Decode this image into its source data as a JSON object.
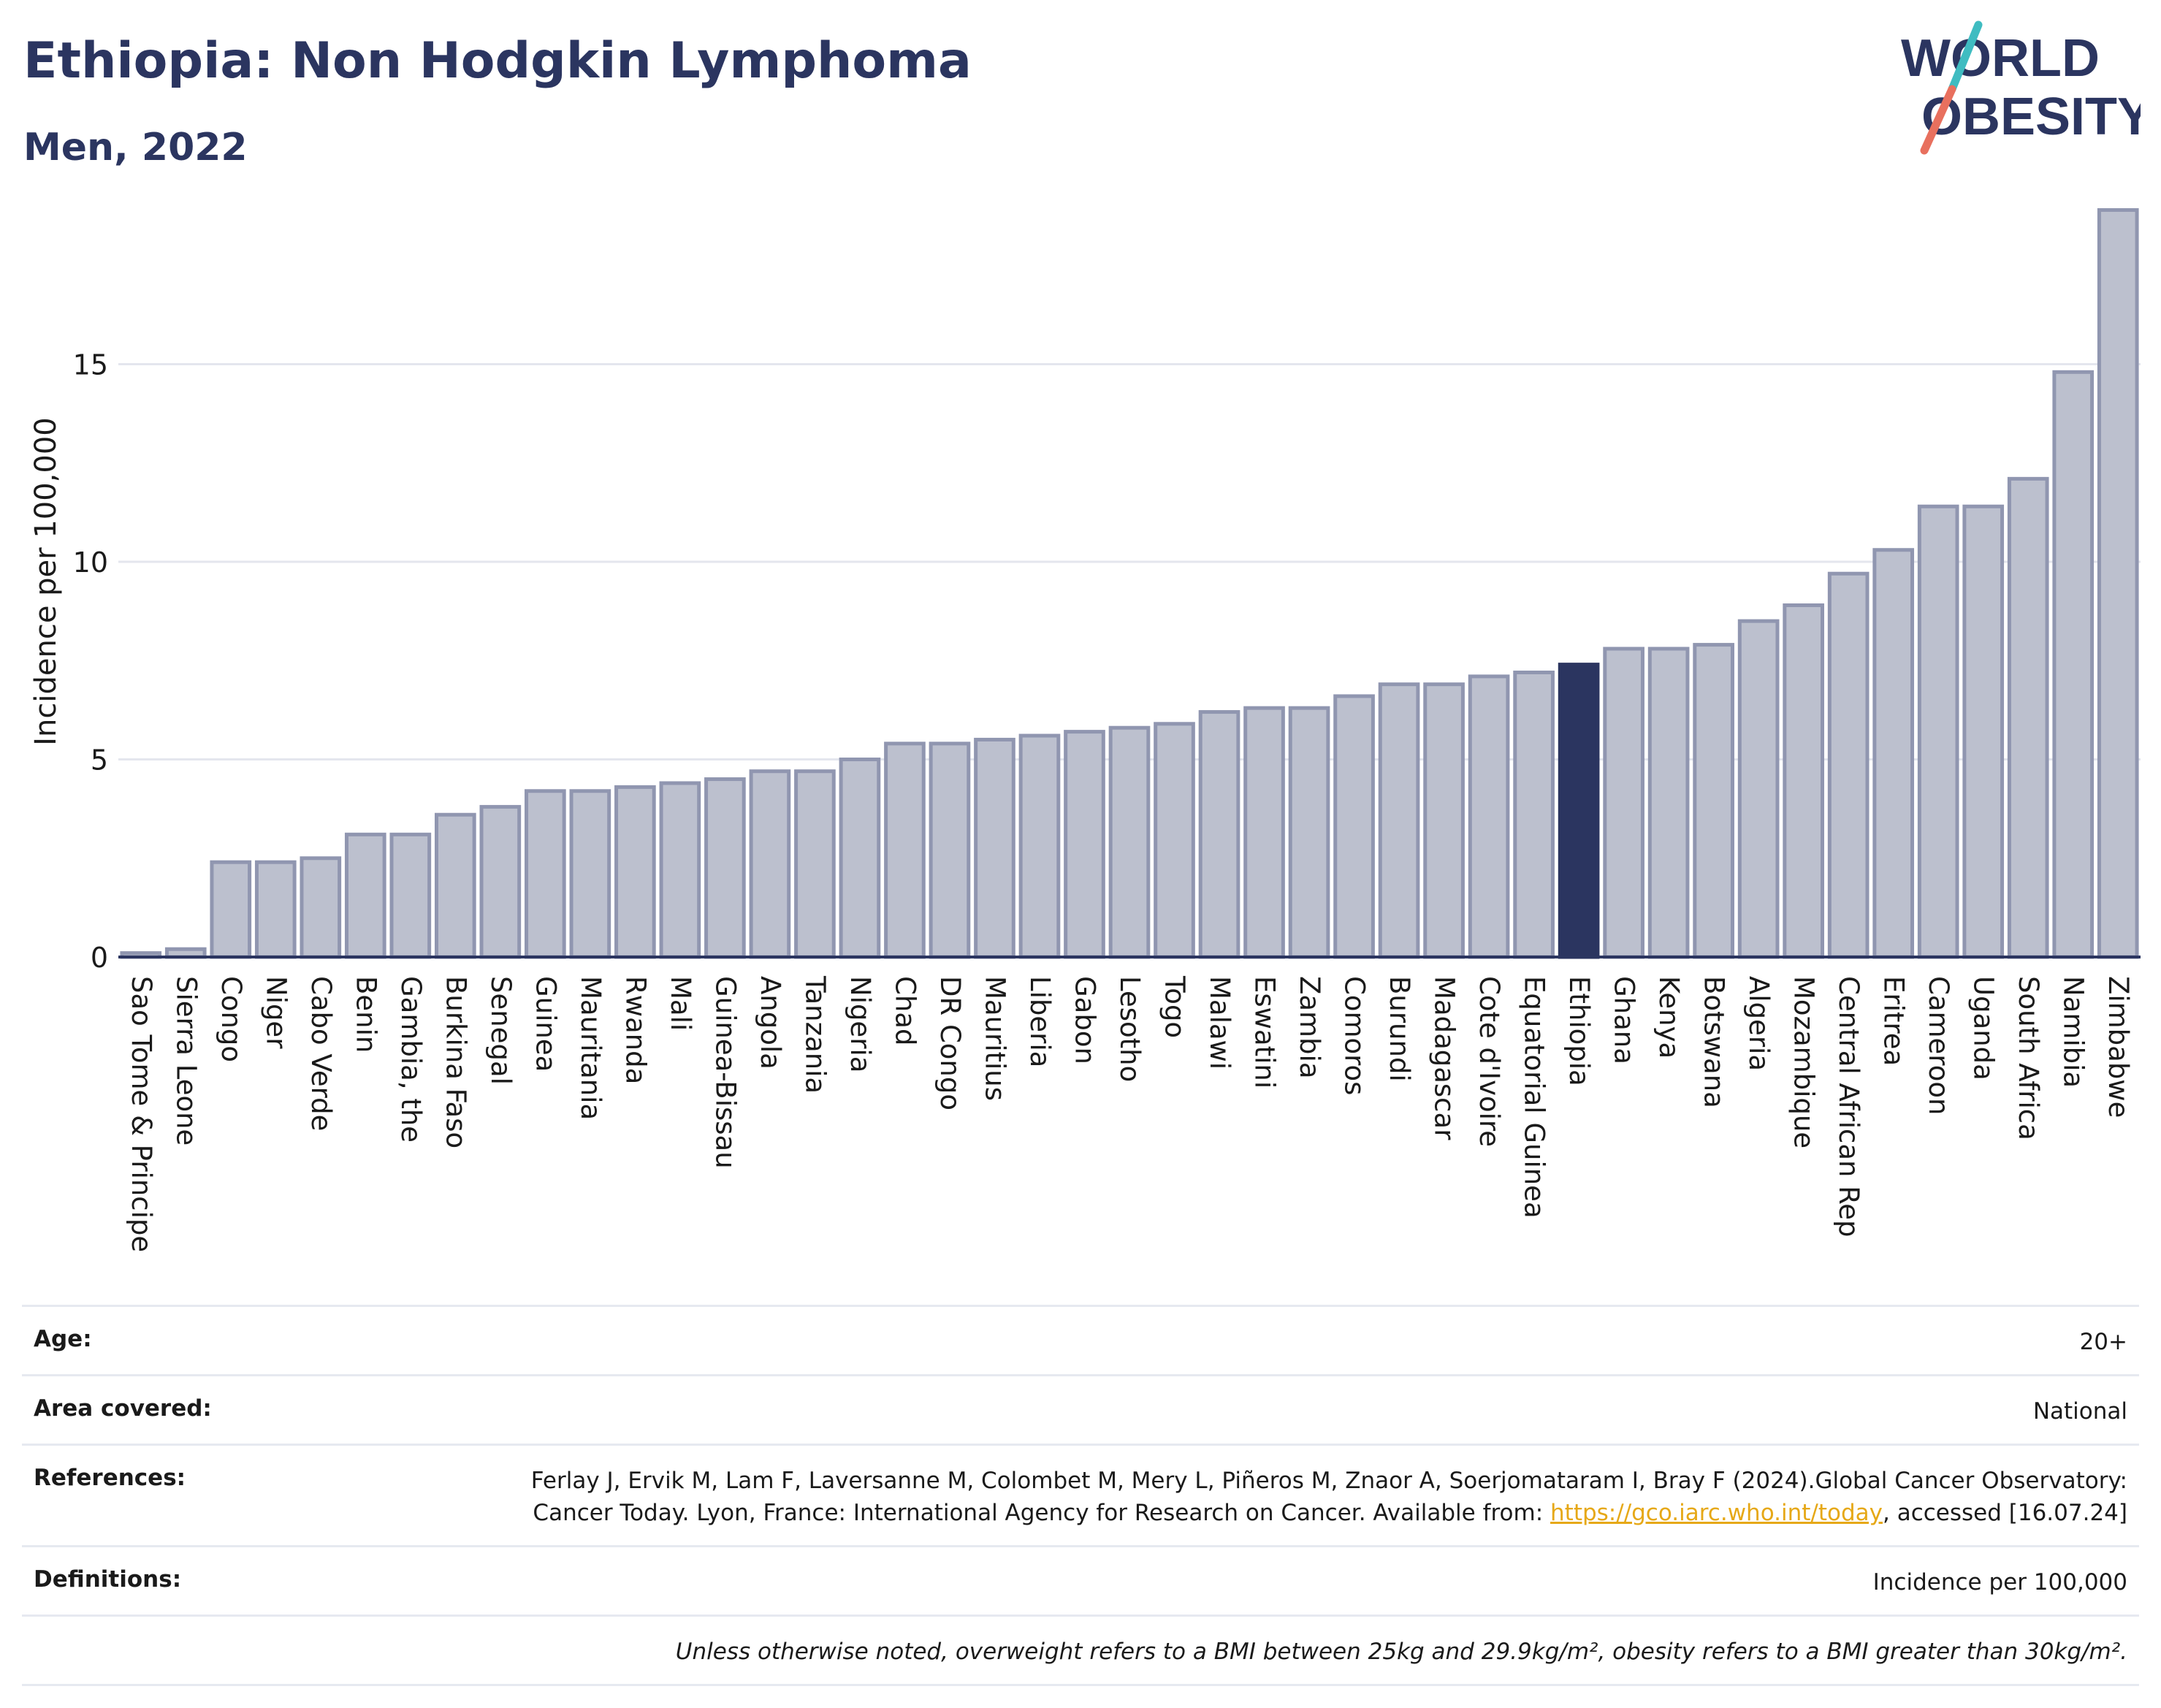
{
  "header": {
    "title": "Ethiopia: Non Hodgkin Lymphoma",
    "subtitle": "Men, 2022"
  },
  "logo": {
    "line1": "WORLD",
    "line2": "OBESITY",
    "colors": {
      "text": "#2b3560",
      "slash_top": "#3fbcc1",
      "slash_bottom": "#e8705e"
    }
  },
  "colors": {
    "bar": "#bcc0ce",
    "bar_border": "#9096b0",
    "highlight": "#2b3560",
    "grid": "#e4e6ee",
    "axis": "#2b3560"
  },
  "chart_data": {
    "type": "bar",
    "ylabel": "Incidence per 100,000",
    "ylim": [
      0,
      19.5
    ],
    "yticks": [
      0,
      5,
      10,
      15
    ],
    "highlight": "Ethiopia",
    "categories": [
      "Sao Tome & Principe",
      "Sierra Leone",
      "Congo",
      "Niger",
      "Cabo Verde",
      "Benin",
      "Gambia, the",
      "Burkina Faso",
      "Senegal",
      "Guinea",
      "Mauritania",
      "Rwanda",
      "Mali",
      "Guinea-Bissau",
      "Angola",
      "Tanzania",
      "Nigeria",
      "Chad",
      "DR Congo",
      "Mauritius",
      "Liberia",
      "Gabon",
      "Lesotho",
      "Togo",
      "Malawi",
      "Eswatini",
      "Zambia",
      "Comoros",
      "Burundi",
      "Madagascar",
      "Cote d'Ivoire",
      "Equatorial Guinea",
      "Ethiopia",
      "Ghana",
      "Kenya",
      "Botswana",
      "Algeria",
      "Mozambique",
      "Central African Rep",
      "Eritrea",
      "Cameroon",
      "Uganda",
      "South Africa",
      "Namibia",
      "Zimbabwe"
    ],
    "values": [
      0.1,
      0.2,
      2.4,
      2.4,
      2.5,
      3.1,
      3.1,
      3.6,
      3.8,
      4.2,
      4.2,
      4.3,
      4.4,
      4.5,
      4.7,
      4.7,
      5.0,
      5.4,
      5.4,
      5.5,
      5.6,
      5.7,
      5.8,
      5.9,
      6.2,
      6.3,
      6.3,
      6.6,
      6.9,
      6.9,
      7.1,
      7.2,
      7.4,
      7.8,
      7.8,
      7.9,
      8.5,
      8.9,
      9.7,
      10.3,
      11.4,
      11.4,
      12.1,
      14.8,
      18.9
    ]
  },
  "meta": {
    "age_label": "Age:",
    "age_value": "20+",
    "area_label": "Area covered:",
    "area_value": "National",
    "references_label": "References:",
    "references_text_1": "Ferlay J, Ervik M, Lam F, Laversanne M, Colombet M, Mery L, Piñeros M, Znaor A, Soerjomataram I, Bray F (2024).Global Cancer Observatory: Cancer Today. Lyon, France: International Agency for Research on Cancer. Available from: ",
    "references_link": "https://gco.iarc.who.int/today",
    "references_text_2": ", accessed [16.07.24]",
    "definitions_label": "Definitions:",
    "definitions_value": "Incidence per 100,000",
    "note": "Unless otherwise noted, overweight refers to a BMI between 25kg and 29.9kg/m², obesity refers to a BMI greater than 30kg/m²."
  }
}
